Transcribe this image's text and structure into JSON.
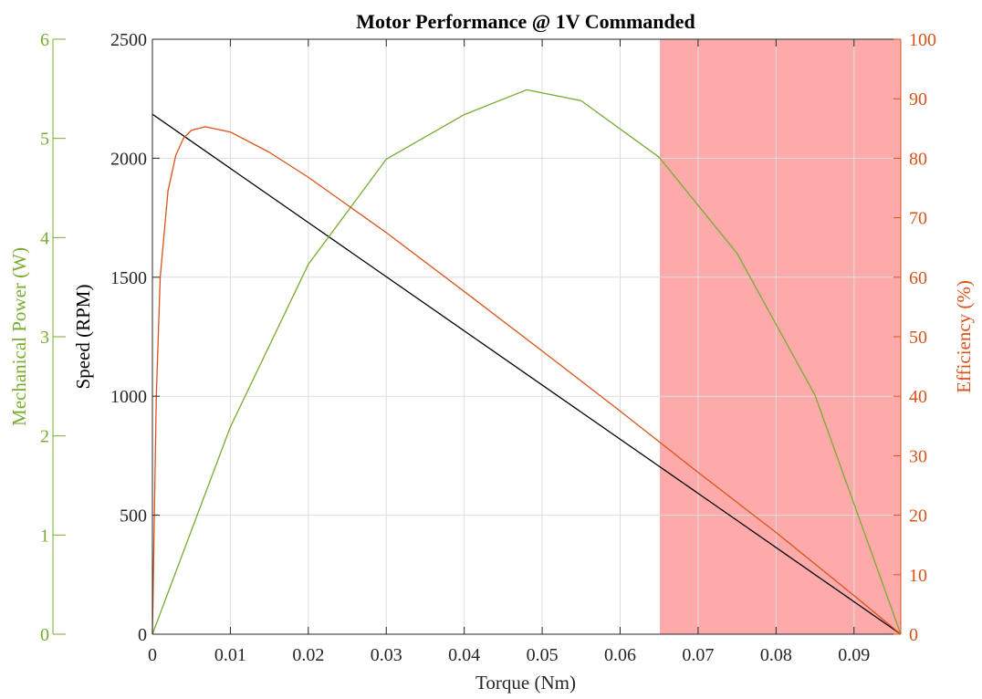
{
  "chart_data": {
    "type": "line",
    "title": "Motor Performance @ 1V Commanded",
    "xlabel": "Torque (Nm)",
    "ylabel": "Speed (RPM)",
    "ylabel_right": "Efficiency (%)",
    "ylabel_outer_left": "Mechanical Power (W)",
    "xlim": [
      0,
      0.096
    ],
    "ylim": [
      0,
      2500
    ],
    "ylim_right": [
      0,
      100
    ],
    "ylim_outer_left": [
      0,
      6
    ],
    "xticks": [
      "0",
      "0.01",
      "0.02",
      "0.03",
      "0.04",
      "0.05",
      "0.06",
      "0.07",
      "0.08",
      "0.09"
    ],
    "yticks": [
      "0",
      "500",
      "1000",
      "1500",
      "2000",
      "2500"
    ],
    "yticks_right": [
      "0",
      "10",
      "20",
      "30",
      "40",
      "50",
      "60",
      "70",
      "80",
      "90",
      "100"
    ],
    "yticks_outer_left": [
      "0",
      "1",
      "2",
      "3",
      "4",
      "5",
      "6"
    ],
    "grid": true,
    "shaded_region": {
      "x_start": 0.0651,
      "x_end": 0.096,
      "color": "#ffaaaa"
    },
    "series": [
      {
        "axis": "left",
        "color": "#000000",
        "x": [
          0,
          0.096
        ],
        "values": [
          2185,
          0
        ]
      },
      {
        "axis": "outer_left",
        "color": "#77ac30",
        "x": [
          0,
          0.01,
          0.02,
          0.03,
          0.04,
          0.048,
          0.055,
          0.065,
          0.075,
          0.085,
          0.096
        ],
        "values": [
          0,
          2.09,
          3.73,
          4.79,
          5.24,
          5.49,
          5.38,
          4.81,
          3.84,
          2.41,
          0
        ]
      },
      {
        "axis": "right",
        "color": "#d95319",
        "x": [
          0,
          0.0005,
          0.001,
          0.002,
          0.003,
          0.004,
          0.005,
          0.0068,
          0.01,
          0.015,
          0.02,
          0.03,
          0.04,
          0.05,
          0.06,
          0.07,
          0.08,
          0.09,
          0.096
        ],
        "values": [
          0,
          40,
          60,
          74.5,
          80.5,
          83.4,
          84.7,
          85.3,
          84.4,
          81,
          76.8,
          67.5,
          57.6,
          47.6,
          37.5,
          27.2,
          17.1,
          6.5,
          0
        ]
      }
    ]
  },
  "colors": {
    "speed": "#000000",
    "power": "#77ac30",
    "efficiency": "#d95319",
    "region": "#ffaaaa",
    "grid": "#dedede"
  }
}
